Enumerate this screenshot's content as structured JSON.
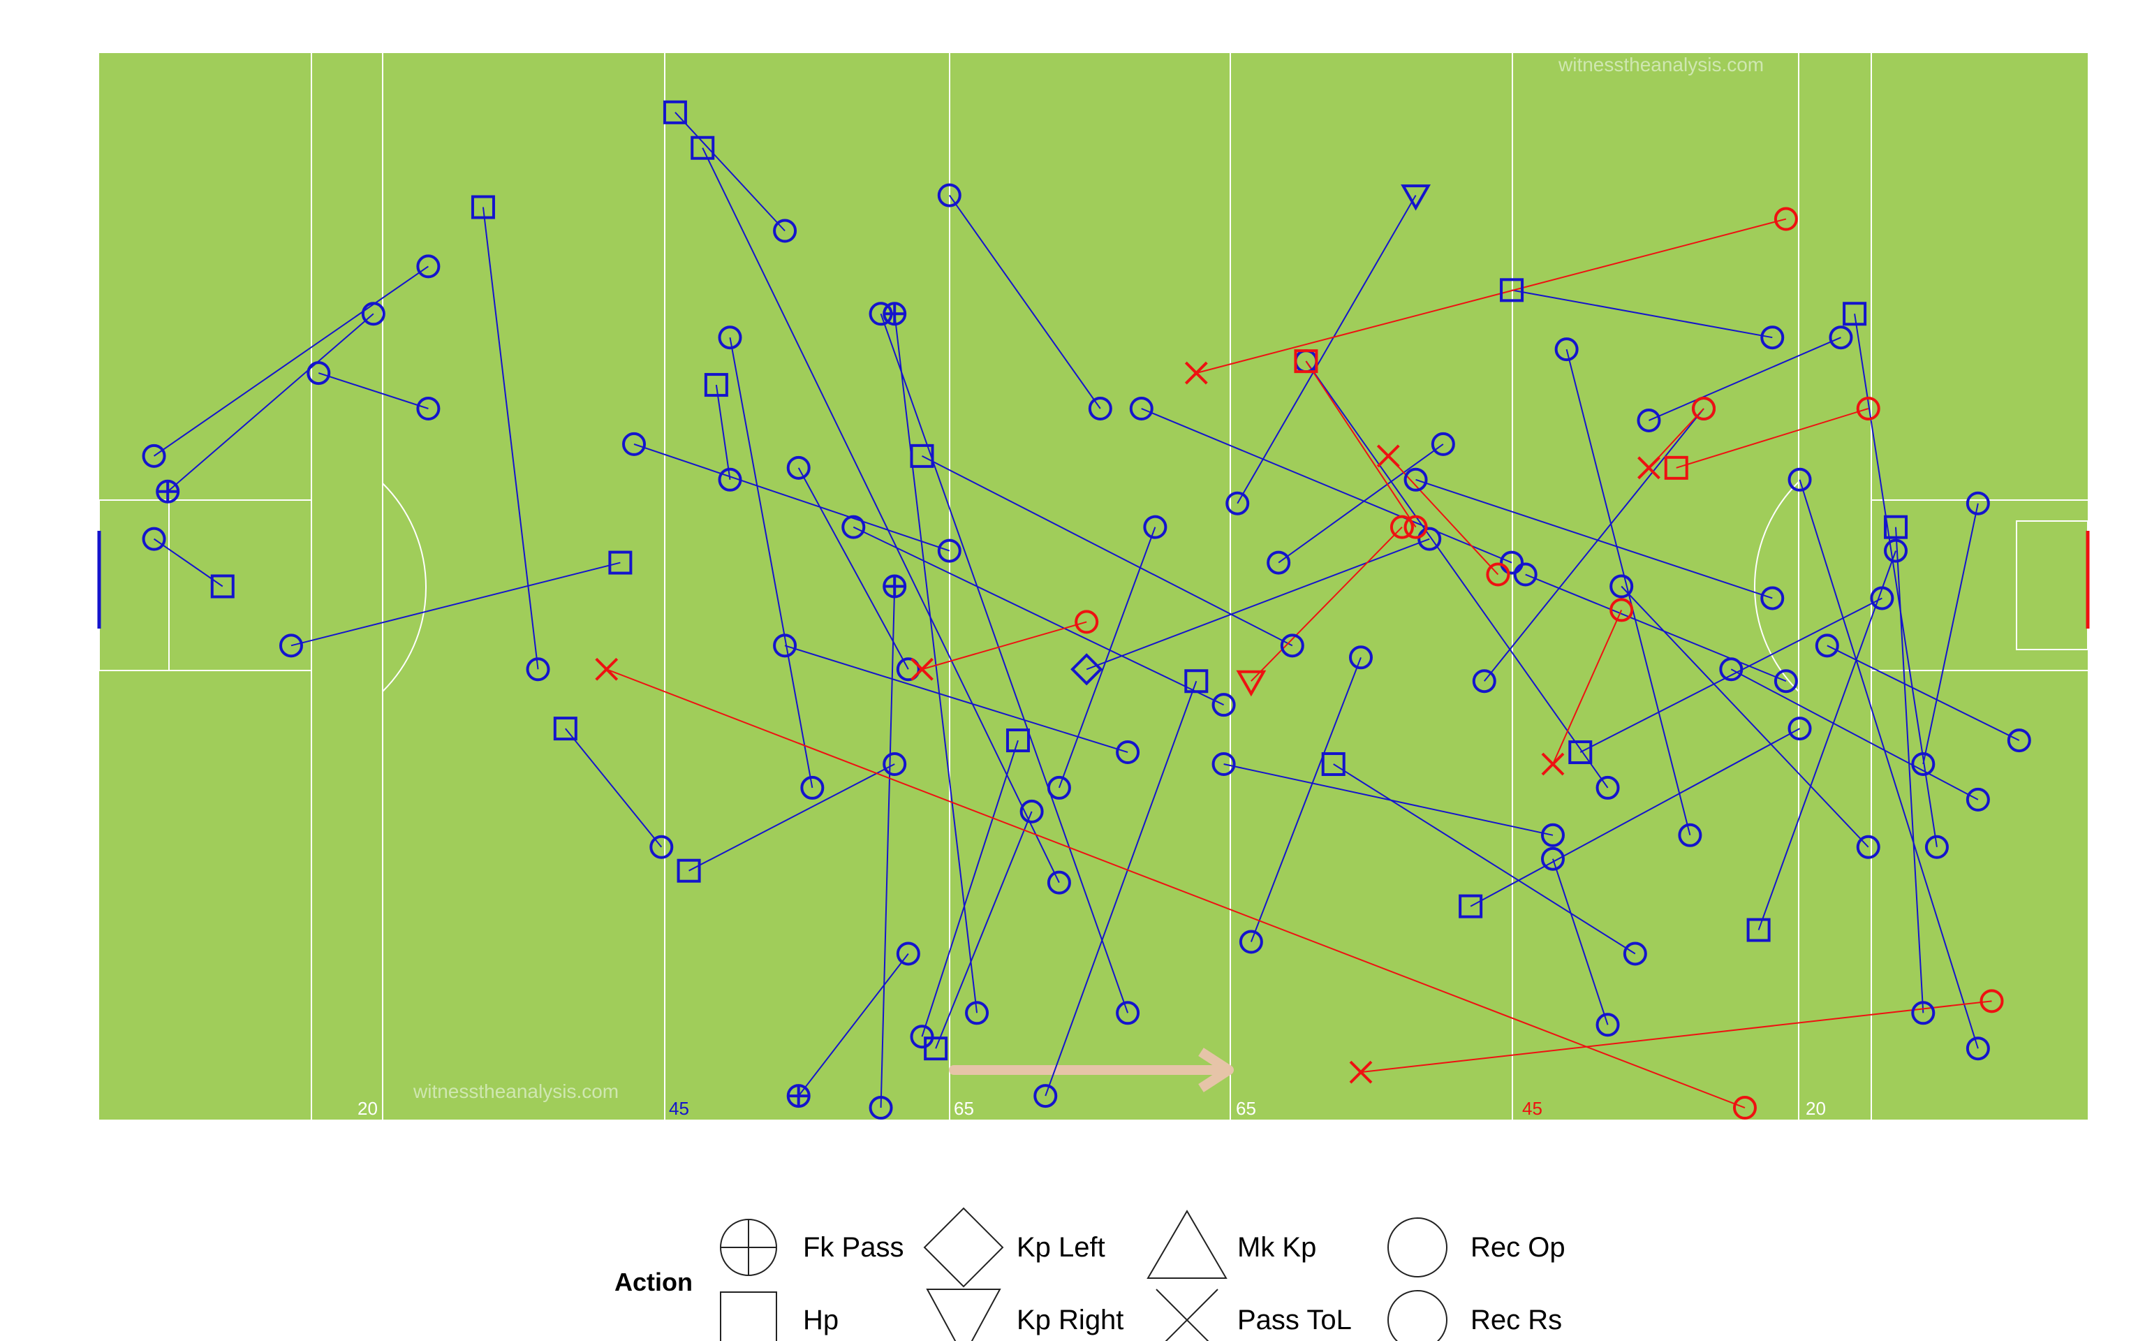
{
  "watermarks": [
    "witnesstheanalysis.com",
    "witnesstheanalysis.com"
  ],
  "pitch_labels": {
    "left_20": "20",
    "left_45": "45",
    "left_65": "65",
    "right_65": "65",
    "right_45": "45",
    "right_20": "20"
  },
  "legend": {
    "title": "Action",
    "items": [
      {
        "label": "Fk Pass",
        "symbol": "circle-plus"
      },
      {
        "label": "Hp",
        "symbol": "square"
      },
      {
        "label": "Kp Left",
        "symbol": "diamond"
      },
      {
        "label": "Kp Right",
        "symbol": "triangle-down"
      },
      {
        "label": "Mk Kp",
        "symbol": "triangle-up"
      },
      {
        "label": "Pass ToL",
        "symbol": "cross"
      },
      {
        "label": "Rec Op",
        "symbol": "circle"
      },
      {
        "label": "Rec Rs",
        "symbol": "circle"
      }
    ]
  },
  "colors": {
    "pitch": "#a0cd5a",
    "pitch_lines": "#ffffff",
    "team": "#1414cc",
    "opposition": "#ee1111",
    "direction_arrow": "#e6c4a8",
    "label_blue": "#1414cc",
    "label_red": "#ee1111",
    "label_white": "#ffffff",
    "text": "#000000"
  },
  "chart_data": {
    "type": "scatter",
    "title": "",
    "xlabel": "",
    "ylabel": "",
    "xlim": [
      0,
      145
    ],
    "ylim": [
      0,
      90
    ],
    "grid": false,
    "legend_position": "bottom",
    "direction": "left-to-right",
    "series": [
      {
        "team": "blue",
        "passes": [
          [
            [
              4,
              34
            ],
            [
              24,
              18
            ],
            "Rec Op"
          ],
          [
            [
              5,
              37
            ],
            [
              20,
              22
            ],
            "Fk Pass"
          ],
          [
            [
              9,
              45
            ],
            [
              4,
              41
            ],
            "Square"
          ],
          [
            [
              16,
              27
            ],
            [
              24,
              30
            ],
            "Rec Op"
          ],
          [
            [
              28,
              13
            ],
            [
              32,
              52
            ],
            "Square"
          ],
          [
            [
              38,
              43
            ],
            [
              14,
              50
            ],
            "Hp"
          ],
          [
            [
              39,
              33
            ],
            [
              62,
              42
            ],
            "Rec Op"
          ],
          [
            [
              42,
              5
            ],
            [
              50,
              15
            ],
            "Square"
          ],
          [
            [
              45,
              28
            ],
            [
              46,
              36
            ],
            "Hp"
          ],
          [
            [
              43,
              69
            ],
            [
              58,
              60
            ],
            "Hp"
          ],
          [
            [
              51,
              35
            ],
            [
              59,
              52
            ],
            "Rec Op"
          ],
          [
            [
              52,
              62
            ],
            [
              46,
              24
            ],
            "Rec Op"
          ],
          [
            [
              50,
              50
            ],
            [
              75,
              59
            ],
            "Rec Op"
          ],
          [
            [
              51,
              88
            ],
            [
              59,
              76
            ],
            "Fk Pass"
          ],
          [
            [
              44,
              8
            ],
            [
              70,
              70
            ],
            "Hp"
          ],
          [
            [
              55,
              40
            ],
            [
              82,
              55
            ],
            "Rec Op"
          ],
          [
            [
              58,
              45
            ],
            [
              57,
              89
            ],
            "Fk Pass"
          ],
          [
            [
              60,
              34
            ],
            [
              87,
              50
            ],
            "Hp"
          ],
          [
            [
              61,
              84
            ],
            [
              68,
              64
            ],
            "Square"
          ],
          [
            [
              62,
              12
            ],
            [
              73,
              30
            ],
            "Rec Op"
          ],
          [
            [
              67,
              58
            ],
            [
              60,
              83
            ],
            "Hp"
          ],
          [
            [
              70,
              62
            ],
            [
              77,
              40
            ],
            "Rec Op"
          ],
          [
            [
              72,
              52
            ],
            [
              97,
              41
            ],
            "Kp Left"
          ],
          [
            [
              75,
              81
            ],
            [
              57,
              22
            ],
            "Rec Op"
          ],
          [
            [
              76,
              30
            ],
            [
              103,
              43
            ],
            "Rec Op"
          ],
          [
            [
              80,
              53
            ],
            [
              69,
              88
            ],
            "Square"
          ],
          [
            [
              82,
              60
            ],
            [
              106,
              66
            ],
            "Rec Op"
          ],
          [
            [
              86,
              43
            ],
            [
              98,
              33
            ],
            "Rec Op"
          ],
          [
            [
              88,
              26
            ],
            [
              110,
              62
            ],
            "Rec Op"
          ],
          [
            [
              90,
              60
            ],
            [
              112,
              76
            ],
            "Hp"
          ],
          [
            [
              92,
              51
            ],
            [
              84,
              75
            ],
            "Rec Op"
          ],
          [
            [
              96,
              36
            ],
            [
              122,
              46
            ],
            "Rec Op"
          ],
          [
            [
              100,
              72
            ],
            [
              124,
              57
            ],
            "Hp"
          ],
          [
            [
              101,
              53
            ],
            [
              117,
              30
            ],
            "Rec Op"
          ],
          [
            [
              103,
              20
            ],
            [
              122,
              24
            ],
            "Hp"
          ],
          [
            [
              104,
              44
            ],
            [
              123,
              53
            ],
            "Rec Op"
          ],
          [
            [
              106,
              68
            ],
            [
              110,
              82
            ],
            "Rec Op"
          ],
          [
            [
              108,
              59
            ],
            [
              130,
              46
            ],
            "Hp"
          ],
          [
            [
              111,
              45
            ],
            [
              129,
              67
            ],
            "Rec Op"
          ],
          [
            [
              113,
              31
            ],
            [
              127,
              24
            ],
            "Rec Op"
          ],
          [
            [
              116,
              66
            ],
            [
              107,
              25
            ],
            "Rec Op"
          ],
          [
            [
              119,
              52
            ],
            [
              137,
              63
            ],
            "Rec Op"
          ],
          [
            [
              121,
              74
            ],
            [
              131,
              42
            ],
            "Hp"
          ],
          [
            [
              124,
              36
            ],
            [
              137,
              84
            ],
            "Rec Op"
          ],
          [
            [
              126,
              50
            ],
            [
              140,
              58
            ],
            "Rec Op"
          ],
          [
            [
              128,
              22
            ],
            [
              134,
              67
            ],
            "Hp"
          ],
          [
            [
              131,
              40
            ],
            [
              133,
              81
            ],
            "Square"
          ],
          [
            [
              133,
              60
            ],
            [
              137,
              38
            ],
            "Rec Op"
          ],
          [
            [
              96,
              12
            ],
            [
              83,
              38
            ],
            "Kp Right"
          ],
          [
            [
              58,
              22
            ],
            [
              64,
              81
            ],
            "Fk Pass"
          ],
          [
            [
              34,
              57
            ],
            [
              41,
              67
            ],
            "Square"
          ]
        ]
      },
      {
        "team": "red",
        "passes": [
          [
            [
              37,
              52
            ],
            [
              120,
              89
            ],
            "Pass ToL"
          ],
          [
            [
              92,
              86
            ],
            [
              138,
              80
            ],
            "Pass ToL"
          ],
          [
            [
              60,
              52
            ],
            [
              72,
              48
            ],
            "Pass ToL"
          ],
          [
            [
              80,
              27
            ],
            [
              123,
              14
            ],
            "Pass ToL"
          ],
          [
            [
              88,
              26
            ],
            [
              96,
              40
            ],
            "Hp"
          ],
          [
            [
              106,
              60
            ],
            [
              111,
              47
            ],
            "Pass ToL"
          ],
          [
            [
              115,
              35
            ],
            [
              129,
              30
            ],
            "Square"
          ],
          [
            [
              113,
              35
            ],
            [
              117,
              30
            ],
            "Pass ToL"
          ],
          [
            [
              94,
              34
            ],
            [
              102,
              44
            ],
            "Pass ToL"
          ],
          [
            [
              84,
              53
            ],
            [
              95,
              40
            ],
            "Kp Right"
          ]
        ]
      }
    ]
  }
}
